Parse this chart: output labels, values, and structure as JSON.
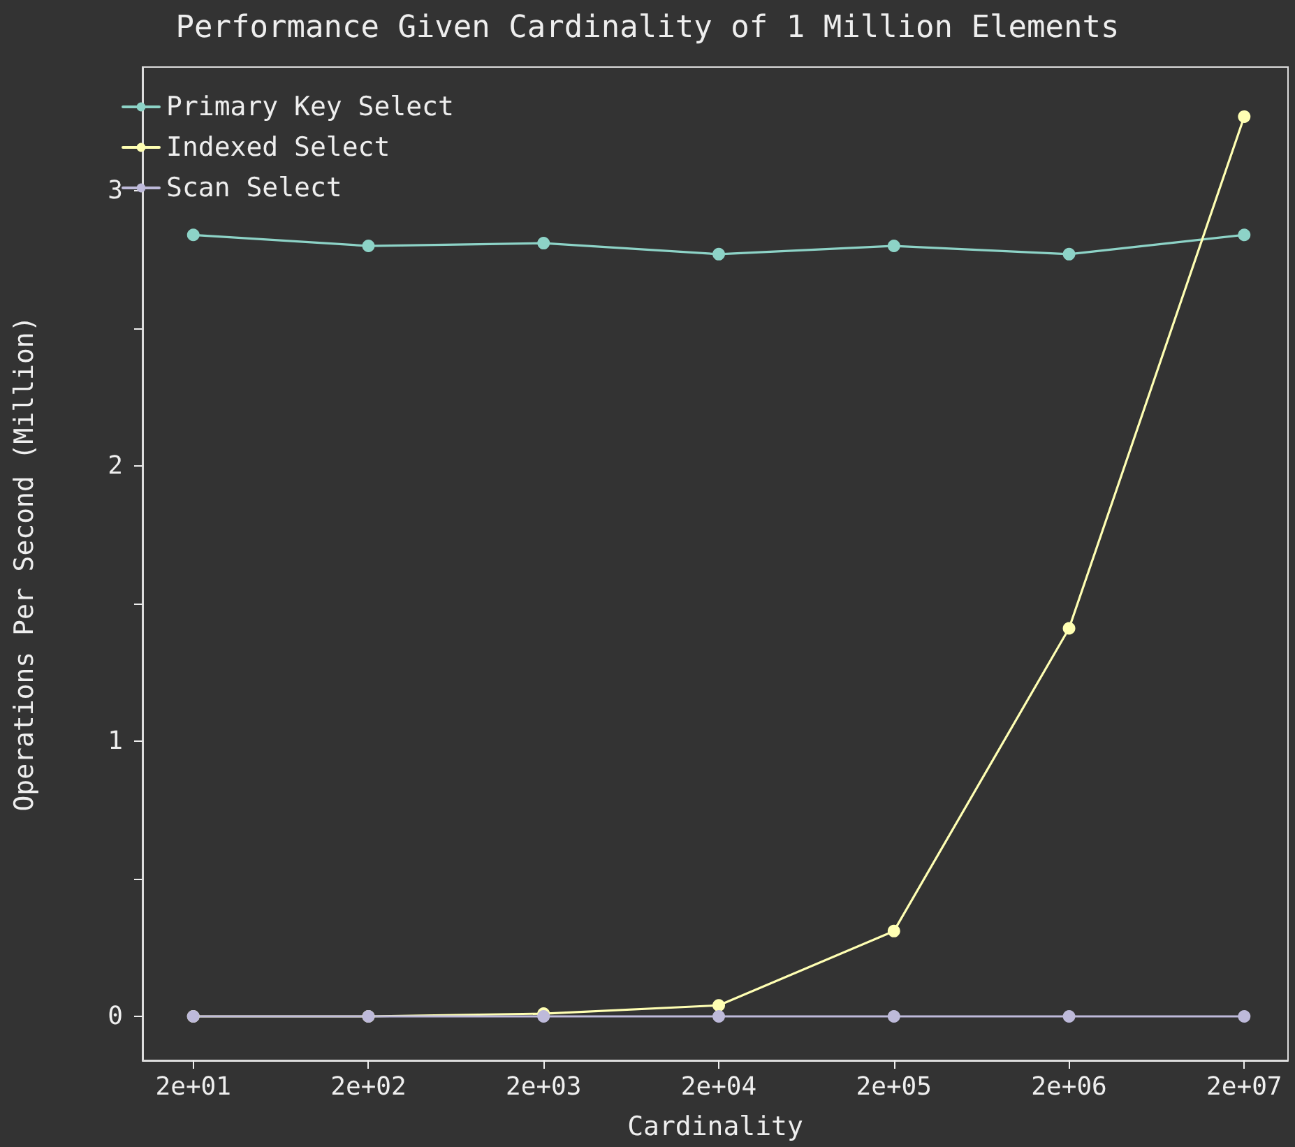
{
  "chart_data": {
    "type": "line",
    "title": "Performance Given Cardinality of 1 Million Elements",
    "xlabel": "Cardinality",
    "ylabel": "Operations Per Second (Million)",
    "categories": [
      "2e+01",
      "2e+02",
      "2e+03",
      "2e+04",
      "2e+05",
      "2e+06",
      "2e+07"
    ],
    "series": [
      {
        "name": "Primary Key Select",
        "color": "#8dd3c7",
        "values": [
          2.84,
          2.8,
          2.81,
          2.77,
          2.8,
          2.77,
          2.84
        ]
      },
      {
        "name": "Indexed Select",
        "color": "#ffffb3",
        "values": [
          0,
          0,
          0.01,
          0.04,
          0.31,
          1.41,
          3.27
        ]
      },
      {
        "name": "Scan Select",
        "color": "#bebada",
        "values": [
          0,
          0,
          0,
          0,
          0,
          0,
          0
        ]
      }
    ],
    "ylim": [
      -0.16,
      3.45
    ],
    "yticks": [
      0,
      {
        "value": 0.5,
        "label": null
      },
      1,
      {
        "value": 1.5,
        "label": null
      },
      2,
      {
        "value": 2.5,
        "label": null
      },
      3
    ],
    "grid": false,
    "legend": "top left",
    "marker": "circle",
    "line_style": "solid"
  }
}
